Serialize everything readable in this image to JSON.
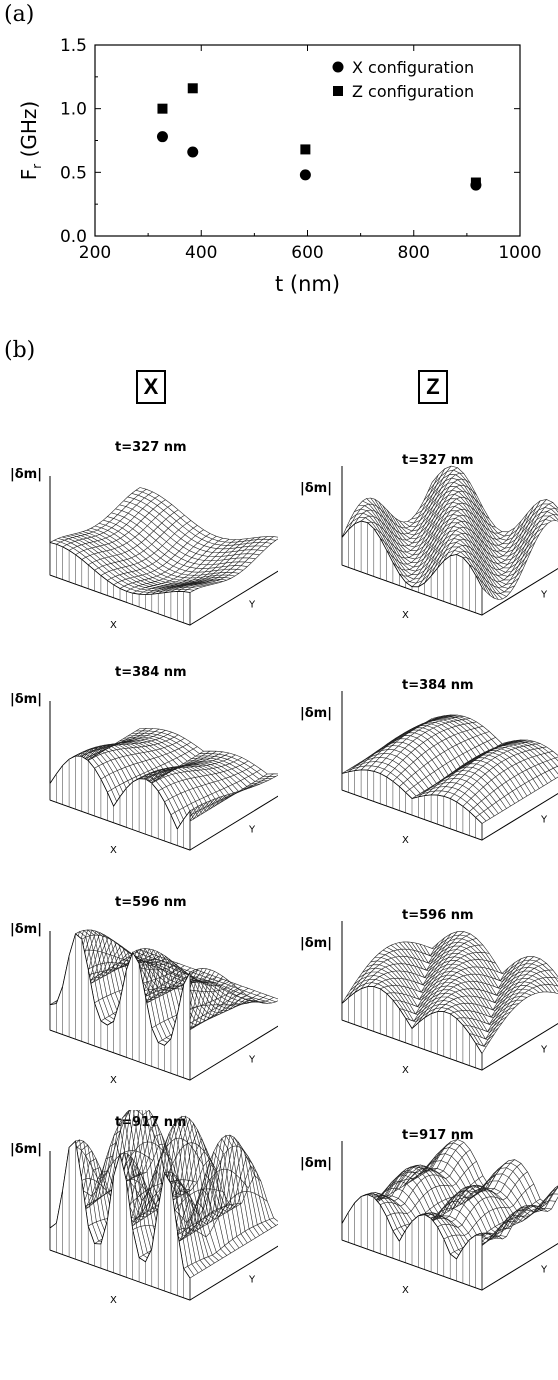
{
  "panel_a": {
    "label": "(a)",
    "chart_data": {
      "type": "scatter",
      "xlabel": "t (nm)",
      "ylabel_main": "F",
      "ylabel_sub": "r",
      "ylabel_unit": "(GHz)",
      "xlim": [
        200,
        1000
      ],
      "ylim": [
        0,
        1.5
      ],
      "xticks": [
        "200",
        "400",
        "600",
        "800",
        "1000"
      ],
      "yticks": [
        "0.0",
        "0.5",
        "1.0",
        "1.5"
      ],
      "legend_position": "top-right",
      "grid": false,
      "series": [
        {
          "name": "X configuration",
          "marker": "circle",
          "x": [
            327,
            384,
            596,
            917
          ],
          "y": [
            0.78,
            0.66,
            0.48,
            0.4
          ]
        },
        {
          "name": "Z configuration",
          "marker": "square",
          "x": [
            327,
            384,
            596,
            917
          ],
          "y": [
            1.0,
            1.16,
            0.68,
            0.42
          ]
        }
      ]
    }
  },
  "panel_b": {
    "label": "(b)",
    "columns": [
      "X",
      "Z"
    ],
    "amplitude_label": "|δm|",
    "x_axis_label": "X",
    "y_axis_label": "Y",
    "plots": [
      {
        "title": "t=327 nm",
        "config": "X"
      },
      {
        "title": "t=327 nm",
        "config": "Z"
      },
      {
        "title": "t=384 nm",
        "config": "X"
      },
      {
        "title": "t=384 nm",
        "config": "Z"
      },
      {
        "title": "t=596 nm",
        "config": "X"
      },
      {
        "title": "t=596 nm",
        "config": "Z"
      },
      {
        "title": "t=917 nm",
        "config": "X"
      },
      {
        "title": "t=917 nm",
        "config": "Z"
      }
    ]
  }
}
